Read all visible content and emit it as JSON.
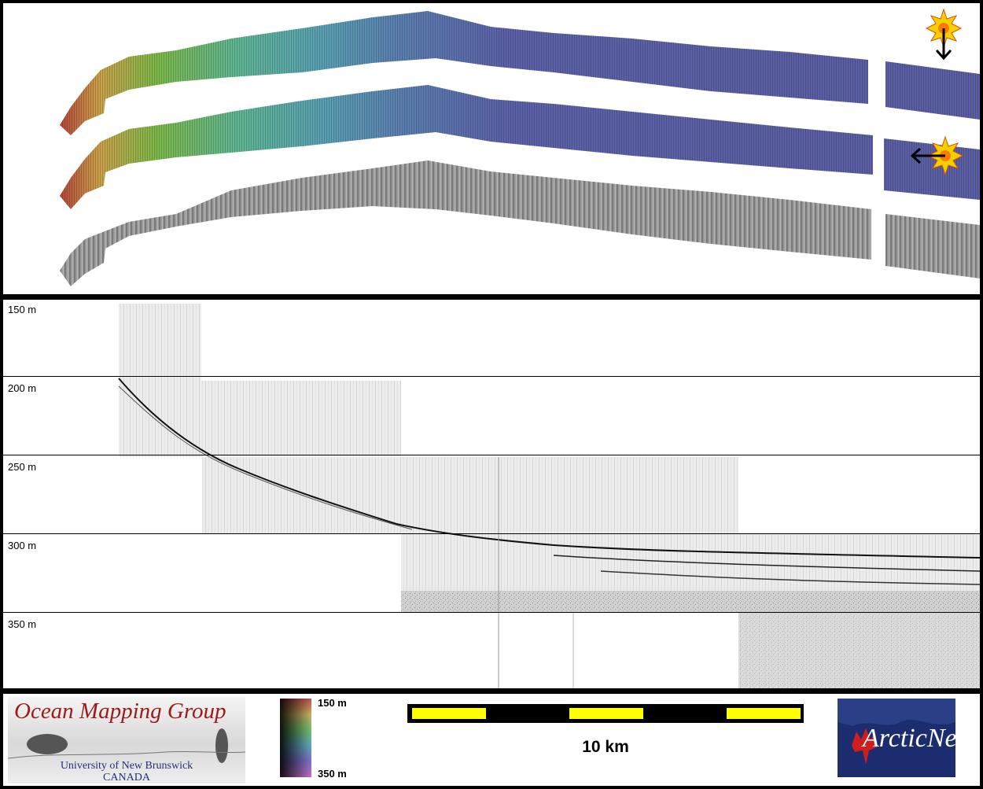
{
  "depth_labels": [
    "150 m",
    "200 m",
    "250 m",
    "300 m",
    "350 m"
  ],
  "logo_omg": {
    "title": "Ocean Mapping Group",
    "line1": "University of New Brunswick",
    "line2": "CANADA"
  },
  "colorbar": {
    "top_label": "150 m",
    "bottom_label": "350 m"
  },
  "scale": {
    "label": "10 km"
  },
  "logo_arcticnet": {
    "text": "ArcticNet"
  },
  "colors": {
    "deep_blue": "#5b5fa3",
    "shallow_red": "#b4453a",
    "scale_yellow": "#ffff00",
    "arcticnet_navy": "#1b2d6e"
  }
}
